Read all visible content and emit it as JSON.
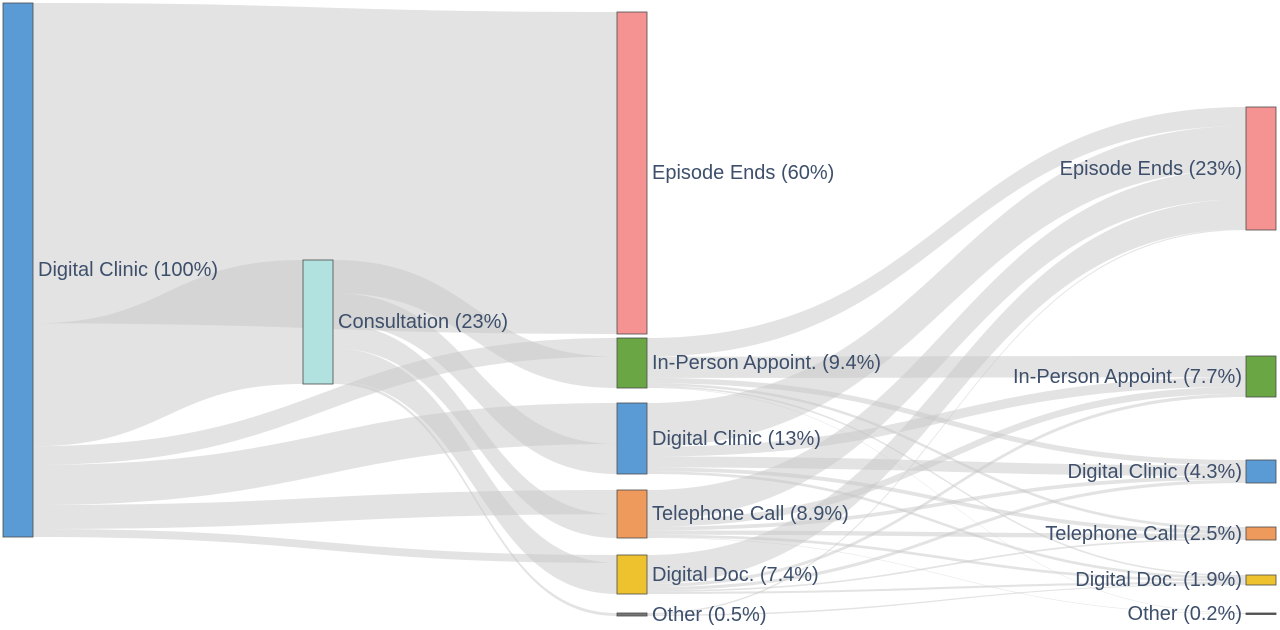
{
  "chart_data": {
    "type": "sankey",
    "nodes": [
      {
        "id": "dc0",
        "label": "Digital Clinic (100%)",
        "color": "#5b9bd5"
      },
      {
        "id": "con",
        "label": "Consultation (23%)",
        "color": "#b2e2e0"
      },
      {
        "id": "ee1",
        "label": "Episode Ends (60%)",
        "color": "#f59392"
      },
      {
        "id": "ip1",
        "label": "In-Person Appoint. (9.4%)",
        "color": "#6aa744"
      },
      {
        "id": "dc1",
        "label": "Digital Clinic (13%)",
        "color": "#5b9bd5"
      },
      {
        "id": "tc1",
        "label": "Telephone Call (8.9%)",
        "color": "#ee9a5d"
      },
      {
        "id": "dd1",
        "label": "Digital Doc. (7.4%)",
        "color": "#eec22e"
      },
      {
        "id": "ot1",
        "label": "Other (0.5%)",
        "color": "#777777"
      },
      {
        "id": "ee2",
        "label": "Episode Ends (23%)",
        "color": "#f59392"
      },
      {
        "id": "ip2",
        "label": "In-Person Appoint. (7.7%)",
        "color": "#6aa744"
      },
      {
        "id": "dc2",
        "label": "Digital Clinic (4.3%)",
        "color": "#5b9bd5"
      },
      {
        "id": "tc2",
        "label": "Telephone Call (2.5%)",
        "color": "#ee9a5d"
      },
      {
        "id": "dd2",
        "label": "Digital Doc. (1.9%)",
        "color": "#eec22e"
      },
      {
        "id": "ot2",
        "label": "Other (0.2%)",
        "color": "#555555"
      }
    ],
    "links": [
      {
        "source": "dc0",
        "target": "ee1",
        "value": 60
      },
      {
        "source": "dc0",
        "target": "con",
        "value": 23
      },
      {
        "source": "dc0",
        "target": "ip1",
        "value": 3.5
      },
      {
        "source": "dc0",
        "target": "dc1",
        "value": 7.5
      },
      {
        "source": "dc0",
        "target": "tc1",
        "value": 4.5
      },
      {
        "source": "dc0",
        "target": "dd1",
        "value": 1.5
      },
      {
        "source": "con",
        "target": "ip1",
        "value": 5.9
      },
      {
        "source": "con",
        "target": "dc1",
        "value": 5.5
      },
      {
        "source": "con",
        "target": "tc1",
        "value": 4.4
      },
      {
        "source": "con",
        "target": "dd1",
        "value": 5.9
      },
      {
        "source": "con",
        "target": "ot1",
        "value": 0.5
      },
      {
        "source": "ip1",
        "target": "ee2",
        "value": 3.5
      },
      {
        "source": "ip1",
        "target": "ip2",
        "value": 4.0
      },
      {
        "source": "ip1",
        "target": "dc2",
        "value": 1.0
      },
      {
        "source": "ip1",
        "target": "tc2",
        "value": 0.5
      },
      {
        "source": "ip1",
        "target": "dd2",
        "value": 0.3
      },
      {
        "source": "ip1",
        "target": "ot2",
        "value": 0.1
      },
      {
        "source": "dc1",
        "target": "ee2",
        "value": 8.0
      },
      {
        "source": "dc1",
        "target": "ip2",
        "value": 1.8
      },
      {
        "source": "dc1",
        "target": "dc2",
        "value": 2.0
      },
      {
        "source": "dc1",
        "target": "tc2",
        "value": 0.7
      },
      {
        "source": "dc1",
        "target": "dd2",
        "value": 0.5
      },
      {
        "source": "tc1",
        "target": "ee2",
        "value": 5.5
      },
      {
        "source": "tc1",
        "target": "ip2",
        "value": 1.3
      },
      {
        "source": "tc1",
        "target": "dc2",
        "value": 0.7
      },
      {
        "source": "tc1",
        "target": "tc2",
        "value": 0.8
      },
      {
        "source": "tc1",
        "target": "dd2",
        "value": 0.5
      },
      {
        "source": "tc1",
        "target": "ot2",
        "value": 0.1
      },
      {
        "source": "dd1",
        "target": "ee2",
        "value": 5.5
      },
      {
        "source": "dd1",
        "target": "ip2",
        "value": 0.6
      },
      {
        "source": "dd1",
        "target": "dc2",
        "value": 0.6
      },
      {
        "source": "dd1",
        "target": "tc2",
        "value": 0.3
      },
      {
        "source": "dd1",
        "target": "dd2",
        "value": 0.4
      },
      {
        "source": "ot1",
        "target": "ee2",
        "value": 0.2
      },
      {
        "source": "ot1",
        "target": "dd2",
        "value": 0.2
      }
    ]
  }
}
